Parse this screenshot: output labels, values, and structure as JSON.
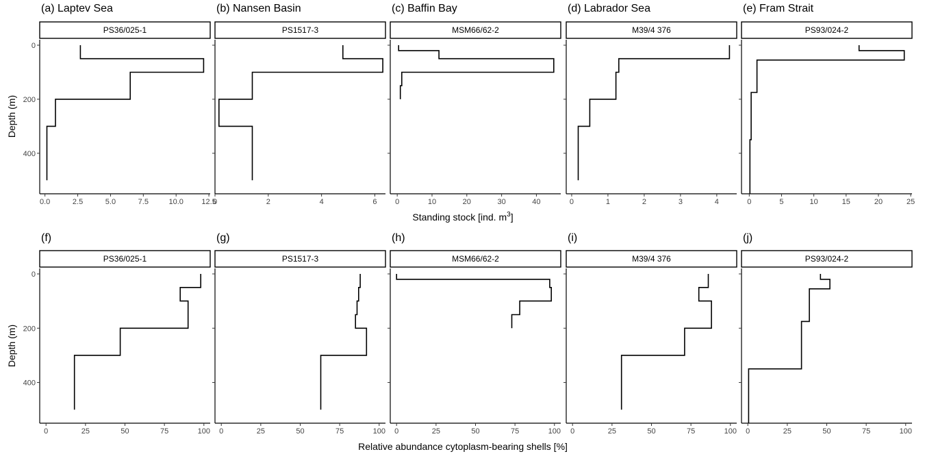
{
  "chart_data": [
    {
      "type": "line",
      "panel": "(a) Laptev Sea",
      "station": "PS36/025-1",
      "row": 0,
      "xlim": [
        -0.4,
        12.6
      ],
      "xticks": [
        0,
        2.5,
        5,
        7.5,
        10,
        12.5
      ],
      "xtick_labels": [
        "0.0",
        "2.5",
        "5.0",
        "7.5",
        "10.0",
        "12.5"
      ],
      "ylim": [
        0,
        550
      ],
      "yticks": [
        0,
        200,
        400
      ],
      "ytick_labels": [
        "0",
        "200",
        "400"
      ],
      "x": [
        2.7,
        2.7,
        12.1,
        12.1,
        6.5,
        6.5,
        0.8,
        0.8,
        0.15,
        0.15
      ],
      "y": [
        0,
        50,
        50,
        100,
        100,
        200,
        200,
        300,
        300,
        500
      ]
    },
    {
      "type": "line",
      "panel": "(b) Nansen Basin",
      "station": "PS1517-3",
      "row": 0,
      "xlim": [
        0,
        6.4
      ],
      "xticks": [
        0,
        2,
        4,
        6
      ],
      "xtick_labels": [
        "0",
        "2",
        "4",
        "6"
      ],
      "ylim": [
        0,
        550
      ],
      "yticks": [
        0,
        200,
        400
      ],
      "ytick_labels": [
        "",
        "",
        ""
      ],
      "x": [
        4.8,
        4.8,
        6.3,
        6.3,
        1.4,
        1.4,
        0.15,
        0.15,
        1.4,
        1.4
      ],
      "y": [
        0,
        50,
        50,
        100,
        100,
        200,
        200,
        300,
        300,
        500
      ]
    },
    {
      "type": "line",
      "panel": "(c) Baffin Bay",
      "station": "MSM66/62-2",
      "row": 0,
      "xlim": [
        -2,
        47
      ],
      "xticks": [
        0,
        10,
        20,
        30,
        40
      ],
      "xtick_labels": [
        "0",
        "10",
        "20",
        "30",
        "40"
      ],
      "ylim": [
        0,
        550
      ],
      "yticks": [
        0,
        200,
        400
      ],
      "ytick_labels": [
        "",
        "",
        ""
      ],
      "x": [
        0.4,
        0.4,
        12,
        12,
        45,
        45,
        1.3,
        1.3,
        0.9,
        0.9
      ],
      "y": [
        0,
        20,
        20,
        50,
        50,
        100,
        100,
        150,
        150,
        200
      ]
    },
    {
      "type": "line",
      "panel": "(d) Labrador Sea",
      "station": "M39/4 376",
      "row": 0,
      "xlim": [
        -0.15,
        4.55
      ],
      "xticks": [
        0,
        1,
        2,
        3,
        4
      ],
      "xtick_labels": [
        "0",
        "1",
        "2",
        "3",
        "4"
      ],
      "ylim": [
        0,
        550
      ],
      "yticks": [
        0,
        200,
        400
      ],
      "ytick_labels": [
        "",
        "",
        ""
      ],
      "x": [
        4.35,
        4.35,
        1.3,
        1.3,
        1.22,
        1.22,
        0.5,
        0.5,
        0.18,
        0.18
      ],
      "y": [
        0,
        50,
        50,
        100,
        100,
        200,
        200,
        300,
        300,
        500
      ]
    },
    {
      "type": "line",
      "panel": "(e) Fram Strait",
      "station": "PS93/024-2",
      "row": 0,
      "xlim": [
        -1.2,
        25.2
      ],
      "xticks": [
        0,
        5,
        10,
        15,
        20,
        25
      ],
      "xtick_labels": [
        "0",
        "5",
        "10",
        "15",
        "20",
        "25"
      ],
      "ylim": [
        0,
        550
      ],
      "yticks": [
        0,
        200,
        400
      ],
      "ytick_labels": [
        "",
        "",
        ""
      ],
      "x": [
        17,
        17,
        24,
        24,
        1.2,
        1.2,
        0.3,
        0.3,
        0.1,
        0.1
      ],
      "y": [
        0,
        20,
        20,
        55,
        55,
        175,
        175,
        350,
        350,
        550
      ]
    },
    {
      "type": "line",
      "panel": "(f)",
      "station": "PS36/025-1",
      "row": 1,
      "xlim": [
        -4,
        104
      ],
      "xticks": [
        0,
        25,
        50,
        75,
        100
      ],
      "xtick_labels": [
        "0",
        "25",
        "50",
        "75",
        "100"
      ],
      "ylim": [
        0,
        550
      ],
      "yticks": [
        0,
        200,
        400
      ],
      "ytick_labels": [
        "0",
        "200",
        "400"
      ],
      "x": [
        98,
        98,
        85,
        85,
        90,
        90,
        47,
        47,
        18,
        18
      ],
      "y": [
        0,
        50,
        50,
        100,
        100,
        200,
        200,
        300,
        300,
        500
      ]
    },
    {
      "type": "line",
      "panel": "(g)",
      "station": "PS1517-3",
      "row": 1,
      "xlim": [
        -4,
        104
      ],
      "xticks": [
        0,
        25,
        50,
        75,
        100
      ],
      "xtick_labels": [
        "0",
        "25",
        "50",
        "75",
        "100"
      ],
      "ylim": [
        0,
        550
      ],
      "yticks": [
        0,
        200,
        400
      ],
      "ytick_labels": [
        "",
        "",
        ""
      ],
      "x": [
        88,
        88,
        87,
        87,
        86,
        86,
        85,
        85,
        92,
        92,
        63,
        63
      ],
      "y": [
        0,
        50,
        50,
        100,
        100,
        150,
        150,
        200,
        200,
        300,
        300,
        500
      ]
    },
    {
      "type": "line",
      "panel": "(h)",
      "station": "MSM66/62-2",
      "row": 1,
      "xlim": [
        -4,
        104
      ],
      "xticks": [
        0,
        25,
        50,
        75,
        100
      ],
      "xtick_labels": [
        "0",
        "25",
        "50",
        "75",
        "100"
      ],
      "ylim": [
        0,
        550
      ],
      "yticks": [
        0,
        200,
        400
      ],
      "ytick_labels": [
        "",
        "",
        ""
      ],
      "x": [
        0,
        0,
        97,
        97,
        98,
        98,
        78,
        78,
        73,
        73
      ],
      "y": [
        0,
        20,
        20,
        50,
        50,
        100,
        100,
        150,
        150,
        200
      ]
    },
    {
      "type": "line",
      "panel": "(i)",
      "station": "M39/4 376",
      "row": 1,
      "xlim": [
        -4,
        104
      ],
      "xticks": [
        0,
        25,
        50,
        75,
        100
      ],
      "xtick_labels": [
        "0",
        "25",
        "50",
        "75",
        "100"
      ],
      "ylim": [
        0,
        550
      ],
      "yticks": [
        0,
        200,
        400
      ],
      "ytick_labels": [
        "",
        "",
        ""
      ],
      "x": [
        86,
        86,
        80,
        80,
        88,
        88,
        71,
        71,
        31,
        31
      ],
      "y": [
        0,
        50,
        50,
        100,
        100,
        200,
        200,
        300,
        300,
        500
      ]
    },
    {
      "type": "line",
      "panel": "(j)",
      "station": "PS93/024-2",
      "row": 1,
      "xlim": [
        -4,
        104
      ],
      "xticks": [
        0,
        25,
        50,
        75,
        100
      ],
      "xtick_labels": [
        "0",
        "25",
        "50",
        "75",
        "100"
      ],
      "ylim": [
        0,
        550
      ],
      "yticks": [
        0,
        200,
        400
      ],
      "ytick_labels": [
        "",
        "",
        ""
      ],
      "x": [
        46,
        46,
        52,
        52,
        39,
        39,
        34,
        34,
        0.5,
        0.5
      ],
      "y": [
        0,
        20,
        20,
        55,
        55,
        175,
        175,
        350,
        350,
        550
      ]
    }
  ],
  "axes": {
    "y_label_top": "Depth (m)",
    "y_label_bottom": "Depth (m)",
    "x_label_top_prefix": "Standing stock [ind. m",
    "x_label_top_sup": "3",
    "x_label_top_suffix": "]",
    "x_label_bottom": "Relative abundance cytoplasm-bearing shells [%]"
  },
  "style": {
    "line_color": "#000000",
    "tick_color": "#444444"
  }
}
